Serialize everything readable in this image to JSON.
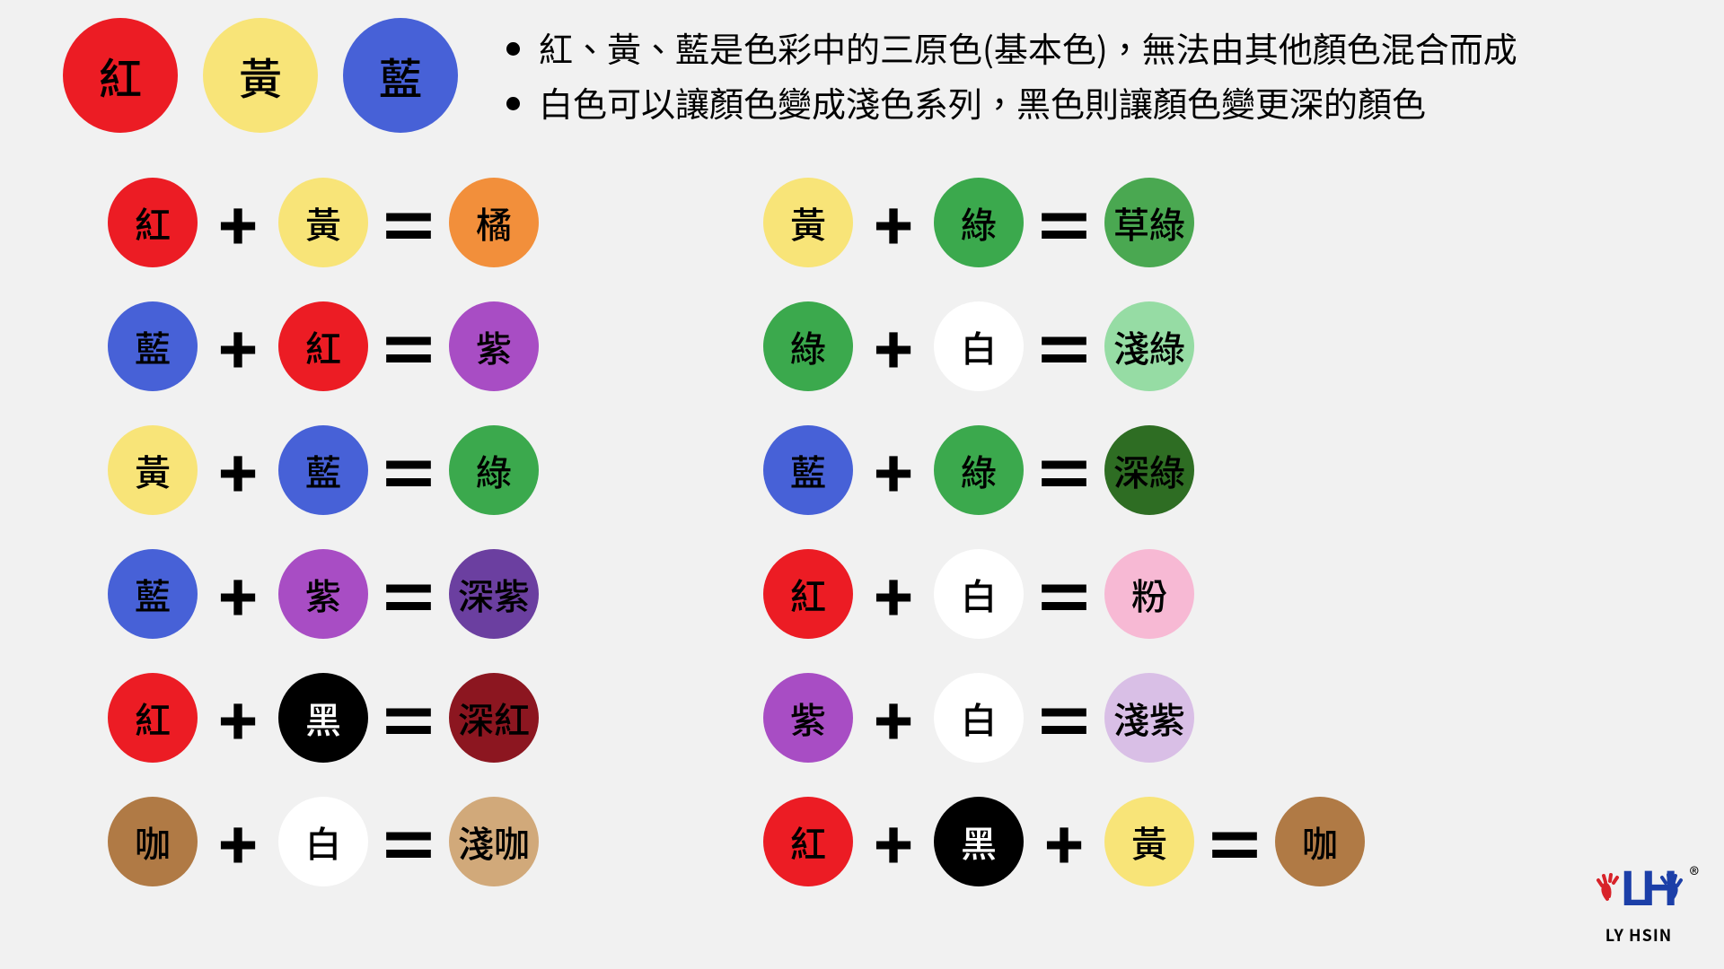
{
  "background_color": "#f1f1f1",
  "primary_circle_diameter": 128,
  "primary_font_size": 48,
  "equation_circle_diameter": 100,
  "equation_font_size": 40,
  "operator_color": "#000000",
  "primaries": [
    {
      "label": "紅",
      "bg": "#ec1c24",
      "fg": "#000000"
    },
    {
      "label": "黃",
      "bg": "#f8e478",
      "fg": "#000000"
    },
    {
      "label": "藍",
      "bg": "#4761d7",
      "fg": "#000000"
    }
  ],
  "bullets": [
    "紅、黃、藍是色彩中的三原色(基本色)，無法由其他顏色混合而成",
    "白色可以讓顏色變成淺色系列，黑色則讓顏色變更深的顏色"
  ],
  "left_equations": [
    {
      "parts": [
        {
          "label": "紅",
          "bg": "#ec1c24",
          "fg": "#000000"
        },
        {
          "label": "黃",
          "bg": "#f8e478",
          "fg": "#000000"
        }
      ],
      "result": {
        "label": "橘",
        "bg": "#f28f3b",
        "fg": "#000000"
      }
    },
    {
      "parts": [
        {
          "label": "藍",
          "bg": "#4761d7",
          "fg": "#000000"
        },
        {
          "label": "紅",
          "bg": "#ec1c24",
          "fg": "#000000"
        }
      ],
      "result": {
        "label": "紫",
        "bg": "#a84dc4",
        "fg": "#000000"
      }
    },
    {
      "parts": [
        {
          "label": "黃",
          "bg": "#f8e478",
          "fg": "#000000"
        },
        {
          "label": "藍",
          "bg": "#4761d7",
          "fg": "#000000"
        }
      ],
      "result": {
        "label": "綠",
        "bg": "#3ba94d",
        "fg": "#000000"
      }
    },
    {
      "parts": [
        {
          "label": "藍",
          "bg": "#4761d7",
          "fg": "#000000"
        },
        {
          "label": "紫",
          "bg": "#a84dc4",
          "fg": "#000000"
        }
      ],
      "result": {
        "label": "深紫",
        "bg": "#6b3fa0",
        "fg": "#000000"
      }
    },
    {
      "parts": [
        {
          "label": "紅",
          "bg": "#ec1c24",
          "fg": "#000000"
        },
        {
          "label": "黑",
          "bg": "#000000",
          "fg": "#ffffff"
        }
      ],
      "result": {
        "label": "深紅",
        "bg": "#8c1620",
        "fg": "#000000"
      }
    },
    {
      "parts": [
        {
          "label": "咖",
          "bg": "#b07a45",
          "fg": "#000000"
        },
        {
          "label": "白",
          "bg": "#ffffff",
          "fg": "#000000"
        }
      ],
      "result": {
        "label": "淺咖",
        "bg": "#d1a97a",
        "fg": "#000000"
      }
    }
  ],
  "right_equations": [
    {
      "parts": [
        {
          "label": "黃",
          "bg": "#f8e478",
          "fg": "#000000"
        },
        {
          "label": "綠",
          "bg": "#3ba94d",
          "fg": "#000000"
        }
      ],
      "result": {
        "label": "草綠",
        "bg": "#4aa851",
        "fg": "#000000"
      }
    },
    {
      "parts": [
        {
          "label": "綠",
          "bg": "#3ba94d",
          "fg": "#000000"
        },
        {
          "label": "白",
          "bg": "#ffffff",
          "fg": "#000000"
        }
      ],
      "result": {
        "label": "淺綠",
        "bg": "#96dca4",
        "fg": "#000000"
      }
    },
    {
      "parts": [
        {
          "label": "藍",
          "bg": "#4761d7",
          "fg": "#000000"
        },
        {
          "label": "綠",
          "bg": "#3ba94d",
          "fg": "#000000"
        }
      ],
      "result": {
        "label": "深綠",
        "bg": "#2e6d23",
        "fg": "#000000"
      }
    },
    {
      "parts": [
        {
          "label": "紅",
          "bg": "#ec1c24",
          "fg": "#000000"
        },
        {
          "label": "白",
          "bg": "#ffffff",
          "fg": "#000000"
        }
      ],
      "result": {
        "label": "粉",
        "bg": "#f7b9d4",
        "fg": "#000000"
      }
    },
    {
      "parts": [
        {
          "label": "紫",
          "bg": "#a84dc4",
          "fg": "#000000"
        },
        {
          "label": "白",
          "bg": "#ffffff",
          "fg": "#000000"
        }
      ],
      "result": {
        "label": "淺紫",
        "bg": "#d9bfe6",
        "fg": "#000000"
      }
    },
    {
      "parts": [
        {
          "label": "紅",
          "bg": "#ec1c24",
          "fg": "#000000"
        },
        {
          "label": "黑",
          "bg": "#000000",
          "fg": "#ffffff"
        },
        {
          "label": "黃",
          "bg": "#f8e478",
          "fg": "#000000"
        }
      ],
      "result": {
        "label": "咖",
        "bg": "#b07a45",
        "fg": "#000000"
      }
    }
  ],
  "logo": {
    "text": "LY HSIN",
    "reg": "®",
    "blue": "#1c3fa8",
    "red": "#d8232a"
  }
}
